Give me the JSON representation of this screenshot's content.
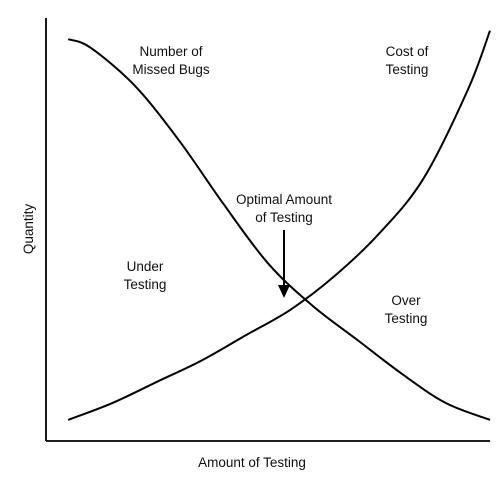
{
  "chart_data": {
    "type": "line",
    "title": "",
    "xlabel": "Amount of Testing",
    "ylabel": "Quantity",
    "xlim": [
      0,
      100
    ],
    "ylim": [
      0,
      100
    ],
    "grid": false,
    "legend": "none",
    "series": [
      {
        "name": "Number of Missed Bugs",
        "x": [
          5,
          10,
          20,
          30,
          40,
          50,
          60,
          70,
          80,
          90,
          100
        ],
        "y": [
          95,
          93,
          84,
          71,
          56,
          42,
          32,
          24,
          16,
          9,
          5
        ]
      },
      {
        "name": "Cost of Testing",
        "x": [
          5,
          15,
          25,
          35,
          45,
          55,
          65,
          75,
          85,
          95,
          100
        ],
        "y": [
          5,
          9,
          14,
          19,
          25,
          31,
          39,
          49,
          62,
          83,
          97
        ]
      }
    ],
    "annotations": {
      "missed_bugs": [
        "Number of",
        "Missed Bugs"
      ],
      "cost": [
        "Cost of",
        "Testing"
      ],
      "optimal": [
        "Optimal Amount",
        "of Testing"
      ],
      "under": [
        "Under",
        "Testing"
      ],
      "over": [
        "Over",
        "Testing"
      ]
    },
    "optimal_point": {
      "x": 56,
      "y": 30
    }
  }
}
